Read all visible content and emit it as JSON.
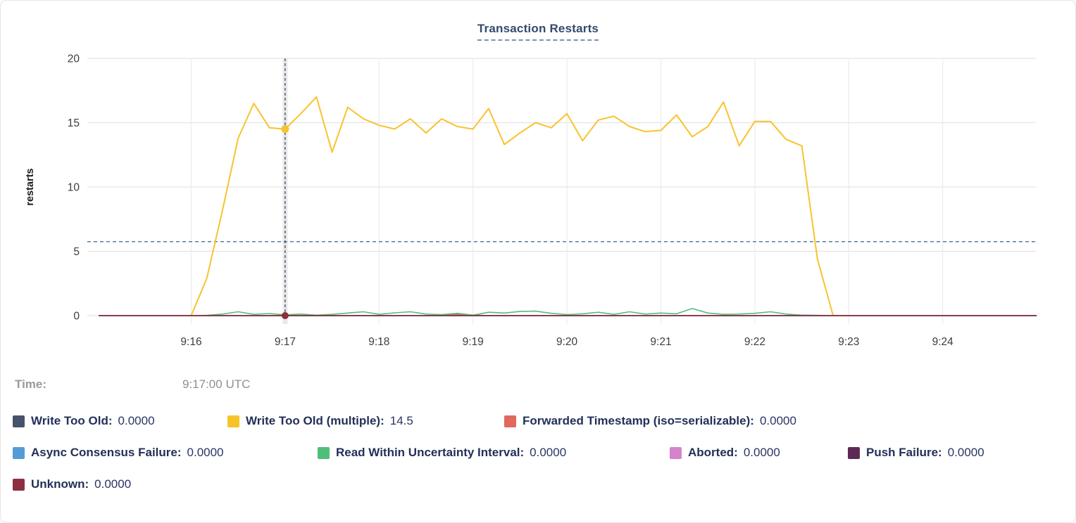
{
  "title": "Transaction Restarts",
  "hover": {
    "time_label": "Time:",
    "time_value": "9:17:00 UTC"
  },
  "y_axis": {
    "label": "restarts",
    "ticks": [
      0,
      5,
      10,
      15,
      20
    ],
    "min": 0,
    "max": 20
  },
  "x_axis": {
    "tick_labels": [
      "9:16",
      "9:17",
      "9:18",
      "9:19",
      "9:20",
      "9:21",
      "9:22",
      "9:23",
      "9:24"
    ]
  },
  "legend": [
    {
      "label": "Write Too Old:",
      "value": "0.0000",
      "color": "#47536b"
    },
    {
      "label": "Write Too Old (multiple):",
      "value": "14.5",
      "color": "#f6c32b"
    },
    {
      "label": "Forwarded Timestamp (iso=serializable):",
      "value": "0.0000",
      "color": "#e0685c"
    },
    {
      "label": "Async Consensus Failure:",
      "value": "0.0000",
      "color": "#539cd8"
    },
    {
      "label": "Read Within Uncertainty Interval:",
      "value": "0.0000",
      "color": "#4fbf77"
    },
    {
      "label": "Aborted:",
      "value": "0.0000",
      "color": "#d583ca"
    },
    {
      "label": "Push Failure:",
      "value": "0.0000",
      "color": "#5e2a55"
    },
    {
      "label": "Unknown:",
      "value": "0.0000",
      "color": "#8e2f40"
    }
  ],
  "chart_data": {
    "type": "line",
    "title": "Transaction Restarts",
    "ylabel": "restarts",
    "ylim": [
      0,
      20
    ],
    "grid": true,
    "x_unit": "seconds after 9:16:00",
    "x_domain_s": [
      -66,
      540
    ],
    "x_ticks": [
      {
        "label": "9:16",
        "t": 0
      },
      {
        "label": "9:17",
        "t": 60
      },
      {
        "label": "9:18",
        "t": 120
      },
      {
        "label": "9:19",
        "t": 180
      },
      {
        "label": "9:20",
        "t": 240
      },
      {
        "label": "9:21",
        "t": 300
      },
      {
        "label": "9:22",
        "t": 360
      },
      {
        "label": "9:23",
        "t": 420
      },
      {
        "label": "9:24",
        "t": 480
      }
    ],
    "avg_dashed_line_value": 5.75,
    "hover_point": {
      "t": 60,
      "series": "Write Too Old (multiple)",
      "value": 14.5,
      "zero_series_value": 0
    },
    "series": [
      {
        "name": "Write Too Old",
        "color": "#47536b",
        "width": 1.5,
        "points": [
          [
            -59,
            0
          ],
          [
            540,
            0
          ]
        ]
      },
      {
        "name": "Write Too Old (multiple)",
        "color": "#f8c32e",
        "width": 2,
        "points": [
          [
            0,
            0
          ],
          [
            10,
            2.9
          ],
          [
            20,
            8.2
          ],
          [
            30,
            13.8
          ],
          [
            40,
            16.5
          ],
          [
            50,
            14.6
          ],
          [
            60,
            14.5
          ],
          [
            70,
            15.7
          ],
          [
            80,
            17
          ],
          [
            90,
            12.7
          ],
          [
            100,
            16.2
          ],
          [
            110,
            15.3
          ],
          [
            120,
            14.8
          ],
          [
            130,
            14.5
          ],
          [
            140,
            15.3
          ],
          [
            150,
            14.2
          ],
          [
            160,
            15.3
          ],
          [
            170,
            14.7
          ],
          [
            180,
            14.5
          ],
          [
            190,
            16.1
          ],
          [
            200,
            13.3
          ],
          [
            210,
            14.2
          ],
          [
            220,
            15
          ],
          [
            230,
            14.6
          ],
          [
            240,
            15.7
          ],
          [
            250,
            13.6
          ],
          [
            260,
            15.2
          ],
          [
            270,
            15.5
          ],
          [
            280,
            14.7
          ],
          [
            290,
            14.3
          ],
          [
            300,
            14.4
          ],
          [
            310,
            15.6
          ],
          [
            320,
            13.9
          ],
          [
            330,
            14.7
          ],
          [
            340,
            16.6
          ],
          [
            350,
            13.2
          ],
          [
            360,
            15.1
          ],
          [
            370,
            15.1
          ],
          [
            380,
            13.7
          ],
          [
            390,
            13.2
          ],
          [
            400,
            4.4
          ],
          [
            410,
            0
          ]
        ]
      },
      {
        "name": "Forwarded Timestamp (iso=serializable)",
        "color": "#e0685c",
        "width": 1.5,
        "points": [
          [
            -59,
            0
          ],
          [
            150,
            0
          ],
          [
            160,
            0.05
          ],
          [
            170,
            0.1
          ],
          [
            180,
            0.05
          ],
          [
            190,
            0
          ],
          [
            540,
            0
          ]
        ]
      },
      {
        "name": "Async Consensus Failure",
        "color": "#539cd8",
        "width": 1.5,
        "points": [
          [
            -59,
            0
          ],
          [
            540,
            0
          ]
        ]
      },
      {
        "name": "Read Within Uncertainty Interval",
        "color": "#4fbf77",
        "width": 1.6,
        "points": [
          [
            -59,
            0
          ],
          [
            0,
            0
          ],
          [
            10,
            0.03
          ],
          [
            20,
            0.12
          ],
          [
            30,
            0.3
          ],
          [
            40,
            0.1
          ],
          [
            50,
            0.16
          ],
          [
            60,
            0.06
          ],
          [
            70,
            0.12
          ],
          [
            80,
            0.04
          ],
          [
            90,
            0.1
          ],
          [
            100,
            0.2
          ],
          [
            110,
            0.3
          ],
          [
            120,
            0.1
          ],
          [
            130,
            0.22
          ],
          [
            140,
            0.3
          ],
          [
            150,
            0.12
          ],
          [
            160,
            0.08
          ],
          [
            170,
            0.18
          ],
          [
            180,
            0.04
          ],
          [
            190,
            0.26
          ],
          [
            200,
            0.2
          ],
          [
            210,
            0.32
          ],
          [
            220,
            0.35
          ],
          [
            230,
            0.18
          ],
          [
            240,
            0.08
          ],
          [
            250,
            0.14
          ],
          [
            260,
            0.26
          ],
          [
            270,
            0.1
          ],
          [
            280,
            0.3
          ],
          [
            290,
            0.12
          ],
          [
            300,
            0.2
          ],
          [
            310,
            0.14
          ],
          [
            320,
            0.55
          ],
          [
            330,
            0.2
          ],
          [
            340,
            0.1
          ],
          [
            350,
            0.12
          ],
          [
            360,
            0.18
          ],
          [
            370,
            0.3
          ],
          [
            380,
            0.12
          ],
          [
            390,
            0.04
          ],
          [
            400,
            0.03
          ],
          [
            410,
            0
          ],
          [
            540,
            0
          ]
        ]
      },
      {
        "name": "Aborted",
        "color": "#d583ca",
        "width": 1.5,
        "points": [
          [
            -59,
            0
          ],
          [
            540,
            0
          ]
        ]
      },
      {
        "name": "Push Failure",
        "color": "#5e2a55",
        "width": 1.5,
        "points": [
          [
            -59,
            0
          ],
          [
            540,
            0
          ]
        ]
      },
      {
        "name": "Unknown",
        "color": "#8e2f40",
        "width": 1.6,
        "points": [
          [
            -59,
            0
          ],
          [
            540,
            0
          ]
        ]
      }
    ]
  }
}
